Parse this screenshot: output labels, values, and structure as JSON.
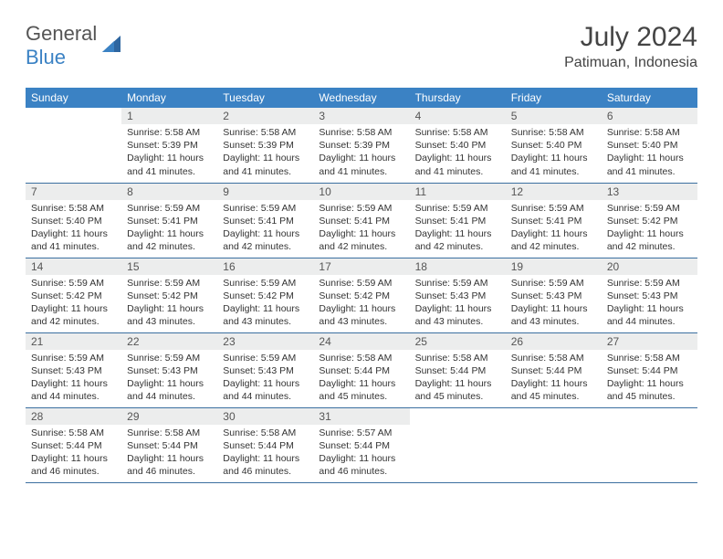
{
  "brand": {
    "general": "General",
    "blue": "Blue"
  },
  "title": "July 2024",
  "location": "Patimuan, Indonesia",
  "colors": {
    "header_bg": "#3b82c4",
    "header_text": "#ffffff",
    "daynum_bg": "#eceded",
    "border": "#3b6fa0",
    "text": "#333333",
    "logo_blue": "#3b82c4",
    "logo_gray": "#555555"
  },
  "weekdays": [
    "Sunday",
    "Monday",
    "Tuesday",
    "Wednesday",
    "Thursday",
    "Friday",
    "Saturday"
  ],
  "weeks": [
    [
      null,
      {
        "n": "1",
        "sr": "Sunrise: 5:58 AM",
        "ss": "Sunset: 5:39 PM",
        "dl": "Daylight: 11 hours and 41 minutes."
      },
      {
        "n": "2",
        "sr": "Sunrise: 5:58 AM",
        "ss": "Sunset: 5:39 PM",
        "dl": "Daylight: 11 hours and 41 minutes."
      },
      {
        "n": "3",
        "sr": "Sunrise: 5:58 AM",
        "ss": "Sunset: 5:39 PM",
        "dl": "Daylight: 11 hours and 41 minutes."
      },
      {
        "n": "4",
        "sr": "Sunrise: 5:58 AM",
        "ss": "Sunset: 5:40 PM",
        "dl": "Daylight: 11 hours and 41 minutes."
      },
      {
        "n": "5",
        "sr": "Sunrise: 5:58 AM",
        "ss": "Sunset: 5:40 PM",
        "dl": "Daylight: 11 hours and 41 minutes."
      },
      {
        "n": "6",
        "sr": "Sunrise: 5:58 AM",
        "ss": "Sunset: 5:40 PM",
        "dl": "Daylight: 11 hours and 41 minutes."
      }
    ],
    [
      {
        "n": "7",
        "sr": "Sunrise: 5:58 AM",
        "ss": "Sunset: 5:40 PM",
        "dl": "Daylight: 11 hours and 41 minutes."
      },
      {
        "n": "8",
        "sr": "Sunrise: 5:59 AM",
        "ss": "Sunset: 5:41 PM",
        "dl": "Daylight: 11 hours and 42 minutes."
      },
      {
        "n": "9",
        "sr": "Sunrise: 5:59 AM",
        "ss": "Sunset: 5:41 PM",
        "dl": "Daylight: 11 hours and 42 minutes."
      },
      {
        "n": "10",
        "sr": "Sunrise: 5:59 AM",
        "ss": "Sunset: 5:41 PM",
        "dl": "Daylight: 11 hours and 42 minutes."
      },
      {
        "n": "11",
        "sr": "Sunrise: 5:59 AM",
        "ss": "Sunset: 5:41 PM",
        "dl": "Daylight: 11 hours and 42 minutes."
      },
      {
        "n": "12",
        "sr": "Sunrise: 5:59 AM",
        "ss": "Sunset: 5:41 PM",
        "dl": "Daylight: 11 hours and 42 minutes."
      },
      {
        "n": "13",
        "sr": "Sunrise: 5:59 AM",
        "ss": "Sunset: 5:42 PM",
        "dl": "Daylight: 11 hours and 42 minutes."
      }
    ],
    [
      {
        "n": "14",
        "sr": "Sunrise: 5:59 AM",
        "ss": "Sunset: 5:42 PM",
        "dl": "Daylight: 11 hours and 42 minutes."
      },
      {
        "n": "15",
        "sr": "Sunrise: 5:59 AM",
        "ss": "Sunset: 5:42 PM",
        "dl": "Daylight: 11 hours and 43 minutes."
      },
      {
        "n": "16",
        "sr": "Sunrise: 5:59 AM",
        "ss": "Sunset: 5:42 PM",
        "dl": "Daylight: 11 hours and 43 minutes."
      },
      {
        "n": "17",
        "sr": "Sunrise: 5:59 AM",
        "ss": "Sunset: 5:42 PM",
        "dl": "Daylight: 11 hours and 43 minutes."
      },
      {
        "n": "18",
        "sr": "Sunrise: 5:59 AM",
        "ss": "Sunset: 5:43 PM",
        "dl": "Daylight: 11 hours and 43 minutes."
      },
      {
        "n": "19",
        "sr": "Sunrise: 5:59 AM",
        "ss": "Sunset: 5:43 PM",
        "dl": "Daylight: 11 hours and 43 minutes."
      },
      {
        "n": "20",
        "sr": "Sunrise: 5:59 AM",
        "ss": "Sunset: 5:43 PM",
        "dl": "Daylight: 11 hours and 44 minutes."
      }
    ],
    [
      {
        "n": "21",
        "sr": "Sunrise: 5:59 AM",
        "ss": "Sunset: 5:43 PM",
        "dl": "Daylight: 11 hours and 44 minutes."
      },
      {
        "n": "22",
        "sr": "Sunrise: 5:59 AM",
        "ss": "Sunset: 5:43 PM",
        "dl": "Daylight: 11 hours and 44 minutes."
      },
      {
        "n": "23",
        "sr": "Sunrise: 5:59 AM",
        "ss": "Sunset: 5:43 PM",
        "dl": "Daylight: 11 hours and 44 minutes."
      },
      {
        "n": "24",
        "sr": "Sunrise: 5:58 AM",
        "ss": "Sunset: 5:44 PM",
        "dl": "Daylight: 11 hours and 45 minutes."
      },
      {
        "n": "25",
        "sr": "Sunrise: 5:58 AM",
        "ss": "Sunset: 5:44 PM",
        "dl": "Daylight: 11 hours and 45 minutes."
      },
      {
        "n": "26",
        "sr": "Sunrise: 5:58 AM",
        "ss": "Sunset: 5:44 PM",
        "dl": "Daylight: 11 hours and 45 minutes."
      },
      {
        "n": "27",
        "sr": "Sunrise: 5:58 AM",
        "ss": "Sunset: 5:44 PM",
        "dl": "Daylight: 11 hours and 45 minutes."
      }
    ],
    [
      {
        "n": "28",
        "sr": "Sunrise: 5:58 AM",
        "ss": "Sunset: 5:44 PM",
        "dl": "Daylight: 11 hours and 46 minutes."
      },
      {
        "n": "29",
        "sr": "Sunrise: 5:58 AM",
        "ss": "Sunset: 5:44 PM",
        "dl": "Daylight: 11 hours and 46 minutes."
      },
      {
        "n": "30",
        "sr": "Sunrise: 5:58 AM",
        "ss": "Sunset: 5:44 PM",
        "dl": "Daylight: 11 hours and 46 minutes."
      },
      {
        "n": "31",
        "sr": "Sunrise: 5:57 AM",
        "ss": "Sunset: 5:44 PM",
        "dl": "Daylight: 11 hours and 46 minutes."
      },
      null,
      null,
      null
    ]
  ]
}
